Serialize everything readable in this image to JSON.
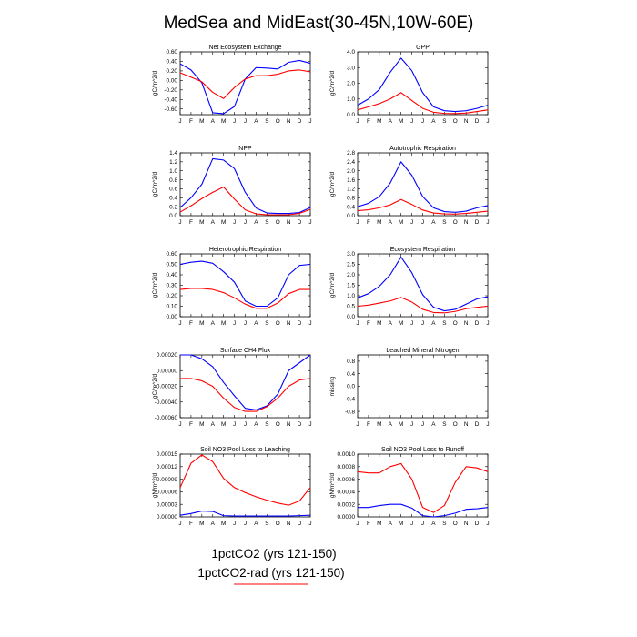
{
  "figure": {
    "title": "MedSea and MidEast(30-45N,10W-60E)",
    "legend": [
      {
        "label": "1pctCO2 (yrs 121-150)",
        "color": "#0000ff",
        "show_line": false
      },
      {
        "label": "1pctCO2-rad (yrs 121-150)",
        "color": "#ff0000",
        "show_line": true
      }
    ]
  },
  "series_colors": {
    "1pctCO2": "#0000ff",
    "1pctCO2-rad": "#ff0000"
  },
  "chart_data": [
    {
      "type": "line",
      "title": "Net Ecosystem Exchange",
      "ylabel": "gC/m^2/d",
      "categories": [
        "J",
        "F",
        "M",
        "A",
        "M",
        "J",
        "J",
        "A",
        "S",
        "O",
        "N",
        "D",
        "J"
      ],
      "ylim": [
        -0.72,
        0.6
      ],
      "yticks": [
        "0.60",
        "0.40",
        "0.20",
        "0.00",
        "-0.20",
        "-0.40",
        "-0.60"
      ],
      "ytick_values": [
        0.6,
        0.4,
        0.2,
        0.0,
        -0.2,
        -0.4,
        -0.6
      ],
      "series": [
        {
          "name": "1pctCO2",
          "color": "#0000ff",
          "values": [
            0.35,
            0.22,
            -0.05,
            -0.68,
            -0.7,
            -0.55,
            0.03,
            0.27,
            0.26,
            0.24,
            0.38,
            0.42,
            0.36
          ]
        },
        {
          "name": "1pctCO2-rad",
          "color": "#ff0000",
          "values": [
            0.16,
            0.07,
            -0.03,
            -0.25,
            -0.38,
            -0.15,
            0.03,
            0.1,
            0.1,
            0.13,
            0.2,
            0.22,
            0.18
          ]
        }
      ]
    },
    {
      "type": "line",
      "title": "GPP",
      "ylabel": "gC/m^2/d",
      "categories": [
        "J",
        "F",
        "M",
        "A",
        "M",
        "J",
        "J",
        "A",
        "S",
        "O",
        "N",
        "D",
        "J"
      ],
      "ylim": [
        0,
        4.0
      ],
      "yticks": [
        "4.0",
        "3.0",
        "2.0",
        "1.0",
        "0.0"
      ],
      "ytick_values": [
        4.0,
        3.0,
        2.0,
        1.0,
        0.0
      ],
      "series": [
        {
          "name": "1pctCO2",
          "color": "#0000ff",
          "values": [
            0.6,
            1.0,
            1.6,
            2.7,
            3.6,
            2.8,
            1.4,
            0.5,
            0.25,
            0.2,
            0.25,
            0.4,
            0.6
          ]
        },
        {
          "name": "1pctCO2-rad",
          "color": "#ff0000",
          "values": [
            0.3,
            0.5,
            0.7,
            1.0,
            1.4,
            0.9,
            0.4,
            0.15,
            0.08,
            0.07,
            0.1,
            0.2,
            0.3
          ]
        }
      ]
    },
    {
      "type": "line",
      "title": "NPP",
      "ylabel": "gC/m^2/d",
      "categories": [
        "J",
        "F",
        "M",
        "A",
        "M",
        "J",
        "J",
        "A",
        "S",
        "O",
        "N",
        "D",
        "J"
      ],
      "ylim": [
        0,
        1.4
      ],
      "yticks": [
        "1.4",
        "1.2",
        "1.0",
        "0.8",
        "0.6",
        "0.4",
        "0.2",
        "0.0"
      ],
      "ytick_values": [
        1.4,
        1.2,
        1.0,
        0.8,
        0.6,
        0.4,
        0.2,
        0.0
      ],
      "series": [
        {
          "name": "1pctCO2",
          "color": "#0000ff",
          "values": [
            0.18,
            0.4,
            0.7,
            1.27,
            1.24,
            1.05,
            0.52,
            0.17,
            0.06,
            0.05,
            0.05,
            0.07,
            0.18
          ]
        },
        {
          "name": "1pctCO2-rad",
          "color": "#ff0000",
          "values": [
            0.08,
            0.22,
            0.38,
            0.52,
            0.64,
            0.37,
            0.13,
            0.04,
            0.02,
            0.02,
            0.02,
            0.05,
            0.14
          ]
        }
      ]
    },
    {
      "type": "line",
      "title": "Autotrophic Respiration",
      "ylabel": "gC/m^2/d",
      "categories": [
        "J",
        "F",
        "M",
        "A",
        "M",
        "J",
        "J",
        "A",
        "S",
        "O",
        "N",
        "D",
        "J"
      ],
      "ylim": [
        0,
        2.8
      ],
      "yticks": [
        "2.8",
        "2.4",
        "2.0",
        "1.6",
        "1.2",
        "0.8",
        "0.4",
        "0.0"
      ],
      "ytick_values": [
        2.8,
        2.4,
        2.0,
        1.6,
        1.2,
        0.8,
        0.4,
        0.0
      ],
      "series": [
        {
          "name": "1pctCO2",
          "color": "#0000ff",
          "values": [
            0.4,
            0.55,
            0.85,
            1.45,
            2.4,
            1.8,
            0.85,
            0.35,
            0.18,
            0.15,
            0.2,
            0.35,
            0.45
          ]
        },
        {
          "name": "1pctCO2-rad",
          "color": "#ff0000",
          "values": [
            0.22,
            0.26,
            0.35,
            0.48,
            0.72,
            0.5,
            0.25,
            0.12,
            0.08,
            0.07,
            0.1,
            0.15,
            0.2
          ]
        }
      ]
    },
    {
      "type": "line",
      "title": "Heterotrophic Respiration",
      "ylabel": "gC/m^2/d",
      "categories": [
        "J",
        "F",
        "M",
        "A",
        "M",
        "J",
        "J",
        "A",
        "S",
        "O",
        "N",
        "D",
        "J"
      ],
      "ylim": [
        0,
        0.6
      ],
      "yticks": [
        "0.60",
        "0.50",
        "0.40",
        "0.30",
        "0.20",
        "0.10",
        "0.00"
      ],
      "ytick_values": [
        0.6,
        0.5,
        0.4,
        0.3,
        0.2,
        0.1,
        0.0
      ],
      "series": [
        {
          "name": "1pctCO2",
          "color": "#0000ff",
          "values": [
            0.5,
            0.52,
            0.53,
            0.51,
            0.43,
            0.33,
            0.15,
            0.1,
            0.1,
            0.18,
            0.4,
            0.49,
            0.5
          ]
        },
        {
          "name": "1pctCO2-rad",
          "color": "#ff0000",
          "values": [
            0.26,
            0.27,
            0.27,
            0.26,
            0.23,
            0.18,
            0.12,
            0.08,
            0.08,
            0.13,
            0.22,
            0.26,
            0.26
          ]
        }
      ]
    },
    {
      "type": "line",
      "title": "Ecosystem Respiration",
      "ylabel": "gC/m^2/d",
      "categories": [
        "J",
        "F",
        "M",
        "A",
        "M",
        "J",
        "J",
        "A",
        "S",
        "O",
        "N",
        "D",
        "J"
      ],
      "ylim": [
        0,
        3.0
      ],
      "yticks": [
        "3.0",
        "2.5",
        "2.0",
        "1.5",
        "1.0",
        "0.5",
        "0.0"
      ],
      "ytick_values": [
        3.0,
        2.5,
        2.0,
        1.5,
        1.0,
        0.5,
        0.0
      ],
      "series": [
        {
          "name": "1pctCO2",
          "color": "#0000ff",
          "values": [
            0.9,
            1.1,
            1.45,
            2.0,
            2.85,
            2.1,
            1.05,
            0.45,
            0.28,
            0.35,
            0.6,
            0.85,
            0.95
          ]
        },
        {
          "name": "1pctCO2-rad",
          "color": "#ff0000",
          "values": [
            0.5,
            0.55,
            0.65,
            0.75,
            0.92,
            0.7,
            0.35,
            0.2,
            0.18,
            0.25,
            0.38,
            0.45,
            0.5
          ]
        }
      ]
    },
    {
      "type": "line",
      "title": "Surface CH4 Flux",
      "ylabel": "gC/m^2/d",
      "categories": [
        "J",
        "F",
        "M",
        "A",
        "M",
        "J",
        "J",
        "A",
        "S",
        "O",
        "N",
        "D",
        "J"
      ],
      "ylim": [
        -0.0006,
        0.0002
      ],
      "yticks": [
        "0.00020",
        "0.00000",
        "-0.00020",
        "-0.00040",
        "-0.00060"
      ],
      "ytick_values": [
        0.0002,
        0.0,
        -0.0002,
        -0.0004,
        -0.0006
      ],
      "series": [
        {
          "name": "1pctCO2",
          "color": "#0000ff",
          "values": [
            0.0002,
            0.0002,
            0.00015,
            5e-05,
            -0.00015,
            -0.00032,
            -0.00048,
            -0.0005,
            -0.00045,
            -0.0003,
            0.0,
            0.0001,
            0.0002
          ]
        },
        {
          "name": "1pctCO2-rad",
          "color": "#ff0000",
          "values": [
            -0.0001,
            -0.0001,
            -0.00013,
            -0.0002,
            -0.00035,
            -0.00047,
            -0.00052,
            -0.00052,
            -0.00046,
            -0.00035,
            -0.0002,
            -0.00012,
            -0.0001
          ]
        }
      ]
    },
    {
      "type": "line",
      "title": "Leached Mineral Nitrogen",
      "ylabel": "missing",
      "categories": [
        "J",
        "F",
        "M",
        "A",
        "M",
        "J",
        "J",
        "A",
        "S",
        "O",
        "N",
        "D",
        "J"
      ],
      "ylim": [
        -1.0,
        1.0
      ],
      "yticks": [
        "0.8",
        "0.4",
        "0.0",
        "-0.4",
        "-0.8"
      ],
      "ytick_values": [
        0.8,
        0.4,
        0.0,
        -0.4,
        -0.8
      ],
      "series": []
    },
    {
      "type": "line",
      "title": "Soil NO3 Pool Loss to Leaching",
      "ylabel": "gN/m^2/d",
      "categories": [
        "J",
        "F",
        "M",
        "A",
        "M",
        "J",
        "J",
        "A",
        "S",
        "O",
        "N",
        "D",
        "J"
      ],
      "ylim": [
        0,
        0.00015
      ],
      "yticks": [
        "0.00015",
        "0.00012",
        "0.00009",
        "0.00006",
        "0.00003",
        "0.00000"
      ],
      "ytick_values": [
        0.00015,
        0.00012,
        9e-05,
        6e-05,
        3e-05,
        0.0
      ],
      "series": [
        {
          "name": "1pctCO2",
          "color": "#0000ff",
          "values": [
            4e-06,
            8e-06,
            1.4e-05,
            1.3e-05,
            3e-06,
            2e-06,
            2e-06,
            2e-06,
            2e-06,
            2e-06,
            2e-06,
            3e-06,
            4e-06
          ]
        },
        {
          "name": "1pctCO2-rad",
          "color": "#ff0000",
          "values": [
            7e-05,
            0.000128,
            0.000148,
            0.000132,
            9.2e-05,
            7e-05,
            5.8e-05,
            4.8e-05,
            4e-05,
            3.3e-05,
            2.8e-05,
            3.8e-05,
            7e-05
          ]
        }
      ]
    },
    {
      "type": "line",
      "title": "Soil NO3 Pool Loss to Runoff",
      "ylabel": "gN/m^2/d",
      "categories": [
        "J",
        "F",
        "M",
        "A",
        "M",
        "J",
        "J",
        "A",
        "S",
        "O",
        "N",
        "D",
        "J"
      ],
      "ylim": [
        0,
        0.001
      ],
      "yticks": [
        "0.0010",
        "0.0008",
        "0.0006",
        "0.0004",
        "0.0002",
        "0.0000"
      ],
      "ytick_values": [
        0.001,
        0.0008,
        0.0006,
        0.0004,
        0.0002,
        0.0
      ],
      "series": [
        {
          "name": "1pctCO2",
          "color": "#0000ff",
          "values": [
            0.00015,
            0.00015,
            0.00018,
            0.0002,
            0.0002,
            0.00014,
            2e-05,
            0.0,
            2e-05,
            6e-05,
            0.00012,
            0.00013,
            0.00015
          ]
        },
        {
          "name": "1pctCO2-rad",
          "color": "#ff0000",
          "values": [
            0.00072,
            0.0007,
            0.0007,
            0.0008,
            0.00085,
            0.0006,
            0.00015,
            7e-05,
            0.00018,
            0.00055,
            0.0008,
            0.00078,
            0.00072
          ]
        }
      ]
    }
  ]
}
